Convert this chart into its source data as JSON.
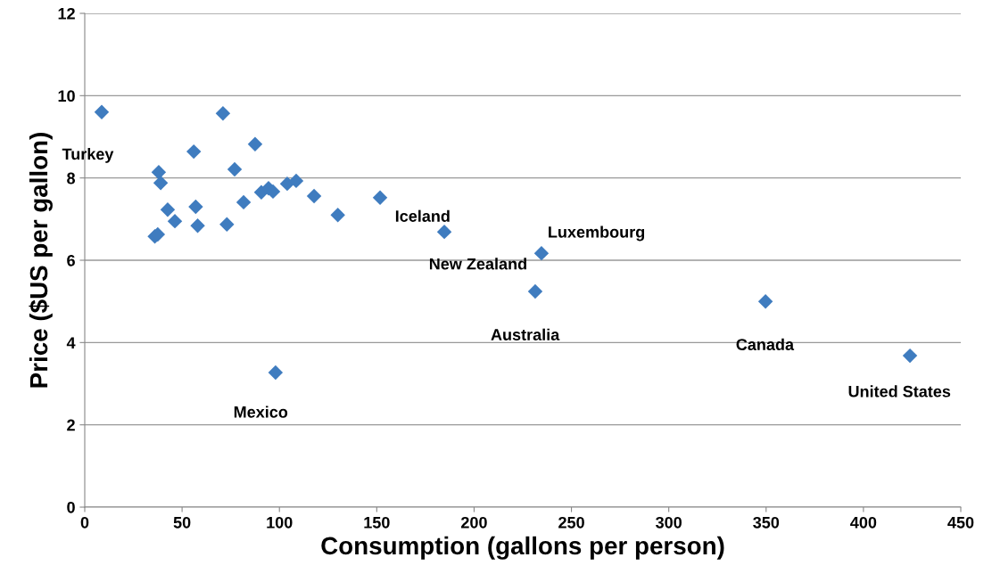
{
  "chart_data": {
    "type": "scatter",
    "xlabel": "Consumption (gallons per person)",
    "ylabel": "Price ($US per gallon)",
    "series": [
      {
        "color": "#3f7cbf",
        "x": [
          8.7,
          71,
          87.5,
          56,
          38,
          39,
          77,
          42.6,
          46.3,
          57,
          58,
          36,
          37.5,
          73,
          81.6,
          90.7,
          94.4,
          96.7,
          104,
          108.6,
          117.8,
          130,
          151.7,
          184.7,
          234.6,
          231.4,
          349.7,
          423.9,
          98
        ],
        "values": [
          9.6,
          9.57,
          8.82,
          8.64,
          8.14,
          7.88,
          8.21,
          7.23,
          6.95,
          7.3,
          6.84,
          6.58,
          6.63,
          6.87,
          7.41,
          7.65,
          7.75,
          7.67,
          7.86,
          7.93,
          7.56,
          7.1,
          7.52,
          6.69,
          6.17,
          5.24,
          5.0,
          3.68,
          3.27
        ]
      }
    ],
    "annotations": [
      {
        "text": "Turkey",
        "x": 8.7,
        "y": 9.6
      },
      {
        "text": "Iceland",
        "x": 151.7,
        "y": 7.52
      },
      {
        "text": "New Zealand",
        "x": 184.7,
        "y": 6.69
      },
      {
        "text": "Luxembourg",
        "x": 234.6,
        "y": 6.17
      },
      {
        "text": "Australia",
        "x": 231.4,
        "y": 5.24
      },
      {
        "text": "Canada",
        "x": 349.7,
        "y": 5.0
      },
      {
        "text": "United States",
        "x": 423.9,
        "y": 3.68
      },
      {
        "text": "Mexico",
        "x": 98,
        "y": 3.27
      }
    ],
    "xlim": [
      0,
      450
    ],
    "xticks": [
      0,
      50,
      100,
      150,
      200,
      250,
      300,
      350,
      400,
      450
    ],
    "ylim": [
      0,
      12
    ],
    "yticks": [
      0,
      2,
      4,
      6,
      8,
      10,
      12
    ],
    "grid": "y",
    "marker": "diamond",
    "legend": false
  }
}
